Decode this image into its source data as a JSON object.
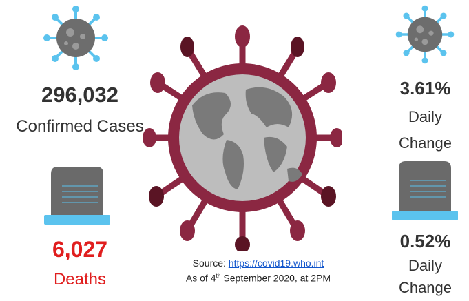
{
  "colors": {
    "virus_body": "#6d6d6d",
    "virus_spike": "#5bc3ee",
    "deaths_red": "#e01e1e",
    "text_gray": "#333333",
    "globe_virus": "#8b2742",
    "globe_virus_dark": "#5a1424",
    "globe_land": "#7a7a7a",
    "globe_ocean": "#bdbdbd",
    "tomb_stone": "#6a6a6a",
    "tomb_base": "#5bc3ee"
  },
  "confirmed": {
    "value": "296,032",
    "label": "Confirmed Cases",
    "icon": "virus-icon"
  },
  "confirmed_change": {
    "value": "3.61%",
    "label_line1": "Daily",
    "label_line2": "Change",
    "icon": "virus-icon"
  },
  "deaths": {
    "value": "6,027",
    "label": "Deaths",
    "icon": "tombstone-icon"
  },
  "deaths_change": {
    "value": "0.52%",
    "label_line1": "Daily",
    "label_line2": "Change",
    "icon": "tombstone-icon"
  },
  "source": {
    "prefix": "Source: ",
    "link": "https://covid19.who.int",
    "date_prefix": "As of 4",
    "date_sup": "th",
    "date_suffix": " September 2020, at 2PM"
  },
  "center_illustration": {
    "icon": "globe-coronavirus-icon"
  }
}
